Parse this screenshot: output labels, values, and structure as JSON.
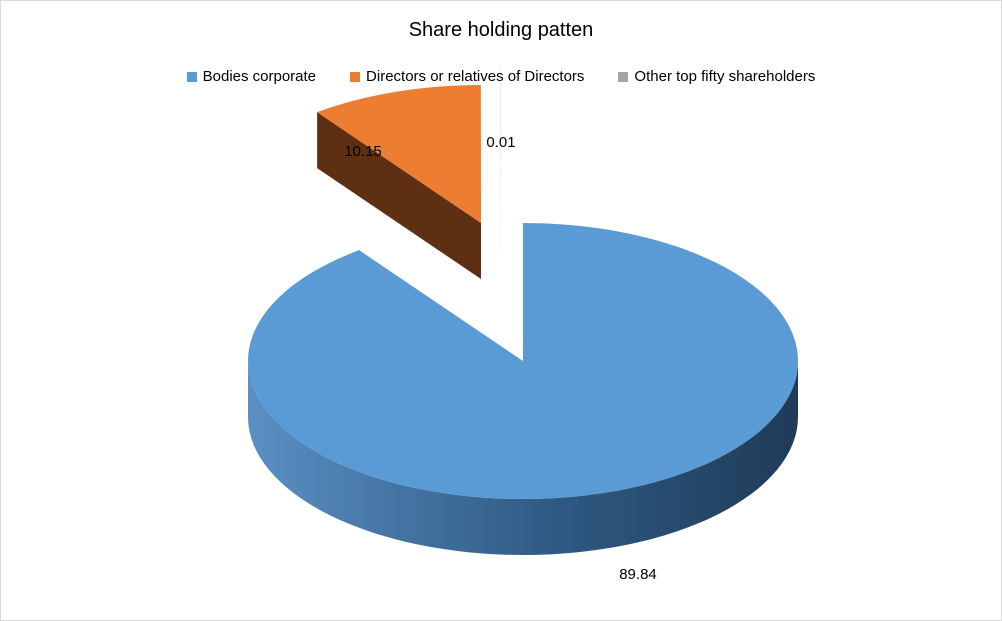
{
  "chart_data": {
    "type": "pie",
    "title": "Share holding patten",
    "legend_position": "top",
    "three_d": true,
    "series": [
      {
        "name": "Bodies corporate",
        "value": 89.84,
        "label": "89.84",
        "color": "#5b9bd5",
        "side_color": "#2f5d86"
      },
      {
        "name": "Directors or relatives of Directors",
        "value": 10.15,
        "label": "10.15",
        "color": "#ed7d31",
        "side_color": "#5e2f12"
      },
      {
        "name": "Other top fifty shareholders",
        "value": 0.01,
        "label": "0.01",
        "color": "#a5a5a5",
        "side_color": "#6f6f6f"
      }
    ]
  }
}
